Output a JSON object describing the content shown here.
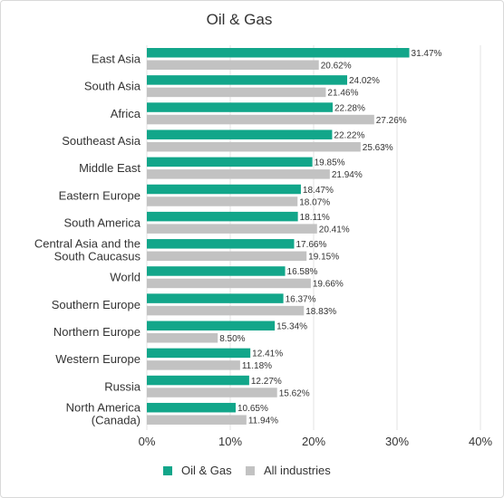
{
  "chart_data": {
    "type": "bar",
    "orientation": "horizontal",
    "title": "Oil & Gas",
    "categories": [
      "East Asia",
      "South Asia",
      "Africa",
      "Southeast Asia",
      "Middle East",
      "Eastern Europe",
      "South America",
      "Central Asia and the South Caucasus",
      "World",
      "Southern Europe",
      "Northern Europe",
      "Western Europe",
      "Russia",
      "North America (Canada)"
    ],
    "category_lines": [
      [
        "East Asia"
      ],
      [
        "South Asia"
      ],
      [
        "Africa"
      ],
      [
        "Southeast Asia"
      ],
      [
        "Middle East"
      ],
      [
        "Eastern Europe"
      ],
      [
        "South America"
      ],
      [
        "Central Asia and the",
        "South Caucasus"
      ],
      [
        "World"
      ],
      [
        "Southern Europe"
      ],
      [
        "Northern Europe"
      ],
      [
        "Western Europe"
      ],
      [
        "Russia"
      ],
      [
        "North America",
        "(Canada)"
      ]
    ],
    "series": [
      {
        "name": "Oil & Gas",
        "color": "#12a68a",
        "values": [
          31.47,
          24.02,
          22.28,
          22.22,
          19.85,
          18.47,
          18.11,
          17.66,
          16.58,
          16.37,
          15.34,
          12.41,
          12.27,
          10.65
        ],
        "labels": [
          "31.47%",
          "24.02%",
          "22.28%",
          "22.22%",
          "19.85%",
          "18.47%",
          "18.11%",
          "17.66%",
          "16.58%",
          "16.37%",
          "15.34%",
          "12.41%",
          "12.27%",
          "10.65%"
        ]
      },
      {
        "name": "All industries",
        "color": "#c2c2c2",
        "values": [
          20.62,
          21.46,
          27.26,
          25.63,
          21.94,
          18.07,
          20.41,
          19.15,
          19.66,
          18.83,
          8.5,
          11.18,
          15.62,
          11.94
        ],
        "labels": [
          "20.62%",
          "21.46%",
          "27.26%",
          "25.63%",
          "21.94%",
          "18.07%",
          "20.41%",
          "19.15%",
          "19.66%",
          "18.83%",
          "8.50%",
          "11.18%",
          "15.62%",
          "11.94%"
        ]
      }
    ],
    "xlim": [
      0,
      40
    ],
    "xticks": [
      0,
      10,
      20,
      30,
      40
    ],
    "xtick_labels": [
      "0%",
      "10%",
      "20%",
      "30%",
      "40%"
    ],
    "grid": true,
    "legend_position": "bottom"
  }
}
